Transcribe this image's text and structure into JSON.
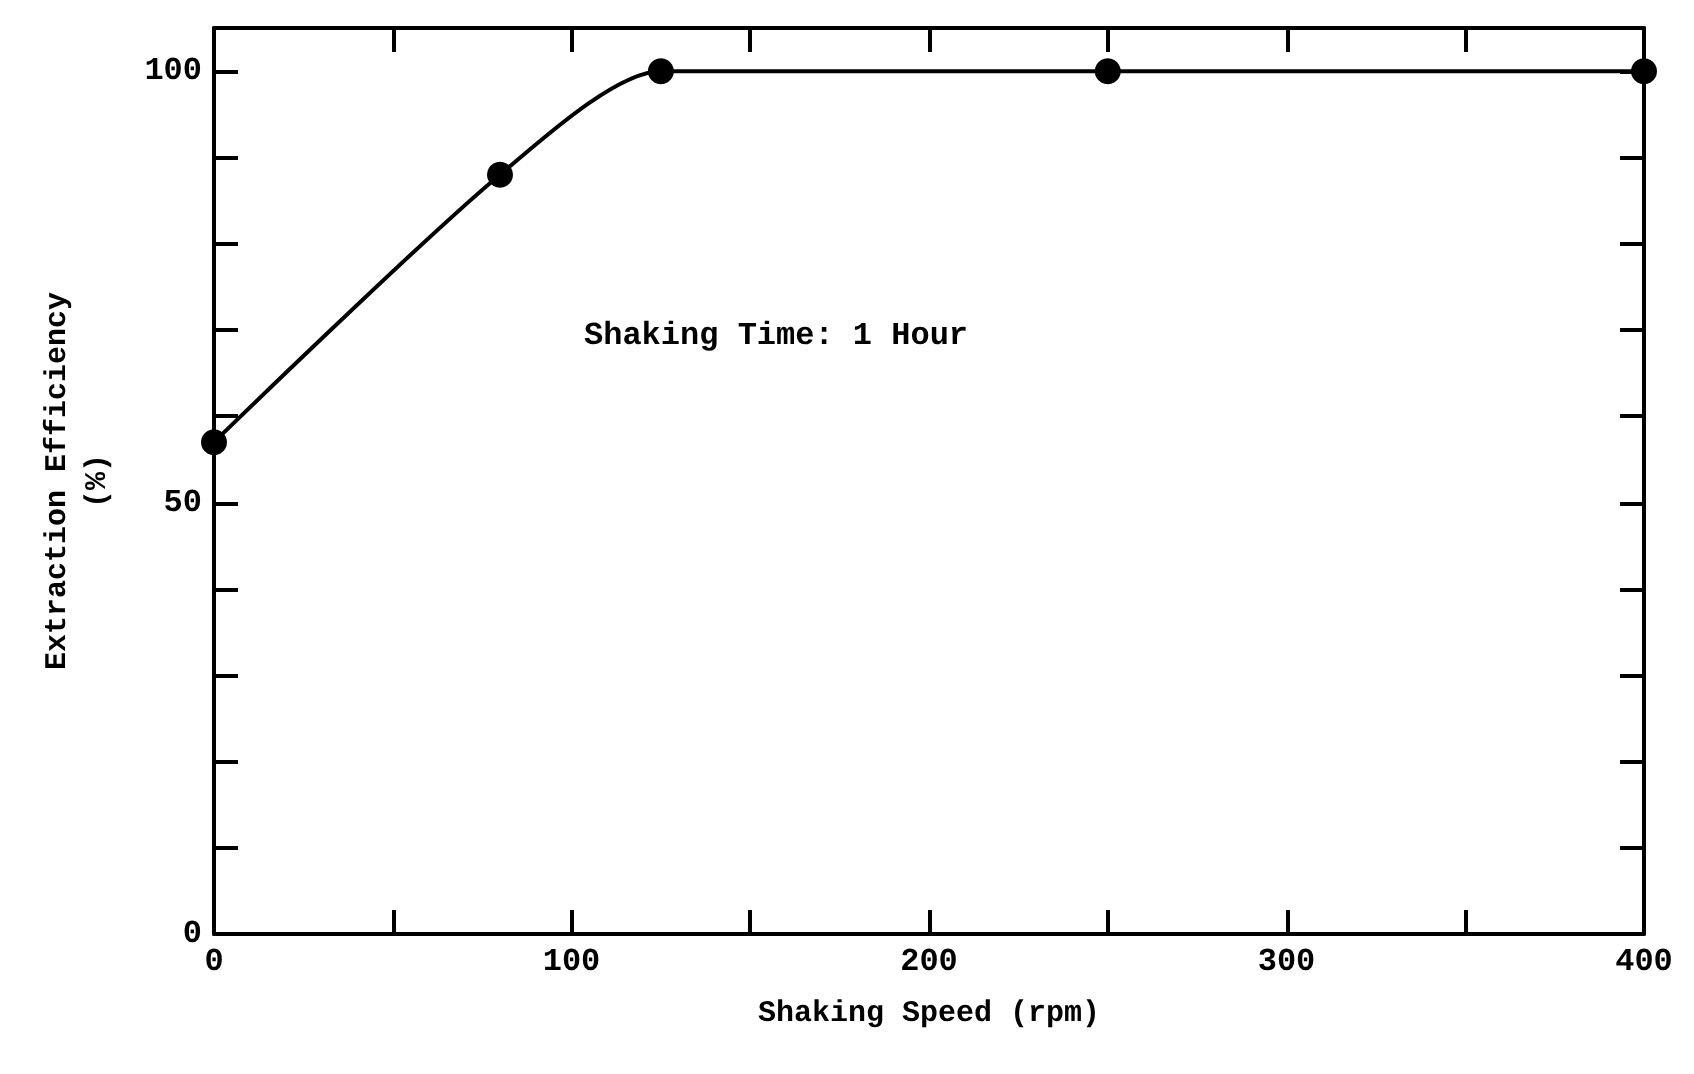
{
  "chart_data": {
    "type": "line",
    "xlabel": "Shaking Speed (rpm)",
    "ylabel": "Extraction Efficiency\n(%)",
    "annotations": [
      "Shaking Time: 1 Hour"
    ],
    "x": [
      0,
      80,
      125,
      250,
      400
    ],
    "series": [
      {
        "color": "#000000",
        "values": [
          57,
          88,
          100,
          100,
          100
        ]
      }
    ],
    "xlim": [
      0,
      400
    ],
    "xticks": [
      0,
      {
        "value": 50,
        "label": null
      },
      100,
      {
        "value": 150,
        "label": null
      },
      200,
      {
        "value": 250,
        "label": null
      },
      300,
      {
        "value": 350,
        "label": null
      },
      400
    ],
    "ylim": [
      0,
      105
    ],
    "yticks": [
      0,
      {
        "value": 10,
        "label": null
      },
      {
        "value": 20,
        "label": null
      },
      {
        "value": 30,
        "label": null
      },
      {
        "value": 40,
        "label": null
      },
      50,
      {
        "value": 60,
        "label": null
      },
      {
        "value": 70,
        "label": null
      },
      {
        "value": 80,
        "label": null
      },
      {
        "value": 90,
        "label": null
      },
      100
    ],
    "marker": "circle",
    "line_style": "solid"
  }
}
